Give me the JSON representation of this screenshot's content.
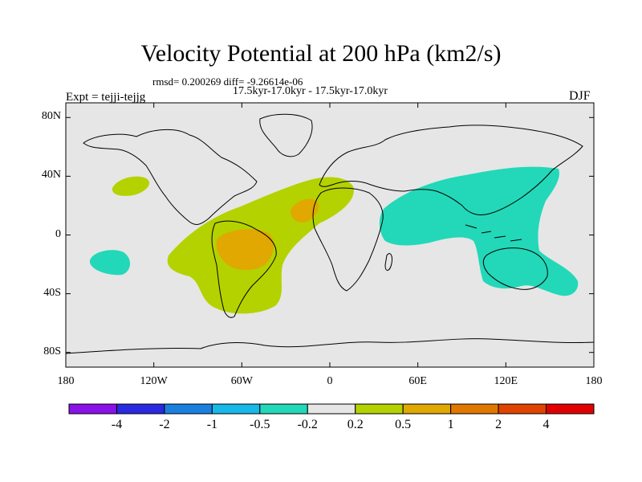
{
  "title": "Velocity Potential at 200 hPa (km2/s)",
  "stats_line": "rmsd= 0.200269 diff= -9.26614e-06",
  "subtitle": "17.5kyr-17.0kyr - 17.5kyr-17.0kyr",
  "experiment": "Expt = tejji-tejjg",
  "season": "DJF",
  "map": {
    "projection": "cylindrical equidistant",
    "lon_range": [
      -180,
      180
    ],
    "lat_range": [
      -90,
      90
    ],
    "y_ticks": [
      {
        "value": 80,
        "label": "80N"
      },
      {
        "value": 40,
        "label": "40N"
      },
      {
        "value": 0,
        "label": "0"
      },
      {
        "value": -40,
        "label": "40S"
      },
      {
        "value": -80,
        "label": "80S"
      }
    ],
    "x_ticks": [
      {
        "value": -180,
        "label": "180"
      },
      {
        "value": -120,
        "label": "120W"
      },
      {
        "value": -60,
        "label": "60W"
      },
      {
        "value": 0,
        "label": "0"
      },
      {
        "value": 60,
        "label": "60E"
      },
      {
        "value": 120,
        "label": "120E"
      },
      {
        "value": 180,
        "label": "180"
      }
    ],
    "field_regions": [
      {
        "name": "atlantic-americas-positive",
        "level": "0.2 to 0.5",
        "color": "#b4d200"
      },
      {
        "name": "south-america-max",
        "level": "0.5 to 1",
        "color": "#e0a800"
      },
      {
        "name": "north-africa-max",
        "level": "0.5 to 1",
        "color": "#e0a800"
      },
      {
        "name": "pacific-small-positive",
        "level": "0.2 to 0.5",
        "color": "#b4d200"
      },
      {
        "name": "indo-pacific-negative",
        "level": "-0.5 to -0.2",
        "color": "#22d8b8"
      },
      {
        "name": "south-pacific-negative",
        "level": "-0.5 to -0.2",
        "color": "#22d8b8"
      }
    ],
    "background_color": "#e6e6e6"
  },
  "colorbar": {
    "colors": [
      "#8a12e8",
      "#2a2ae0",
      "#1a80e0",
      "#18b8e8",
      "#22d8b8",
      "#e6e6e6",
      "#b4d200",
      "#e0a800",
      "#e07800",
      "#e04400",
      "#e00000"
    ],
    "labels": [
      "-4",
      "-2",
      "-1",
      "-0.5",
      "-0.2",
      "0.2",
      "0.5",
      "1",
      "2",
      "4"
    ]
  }
}
